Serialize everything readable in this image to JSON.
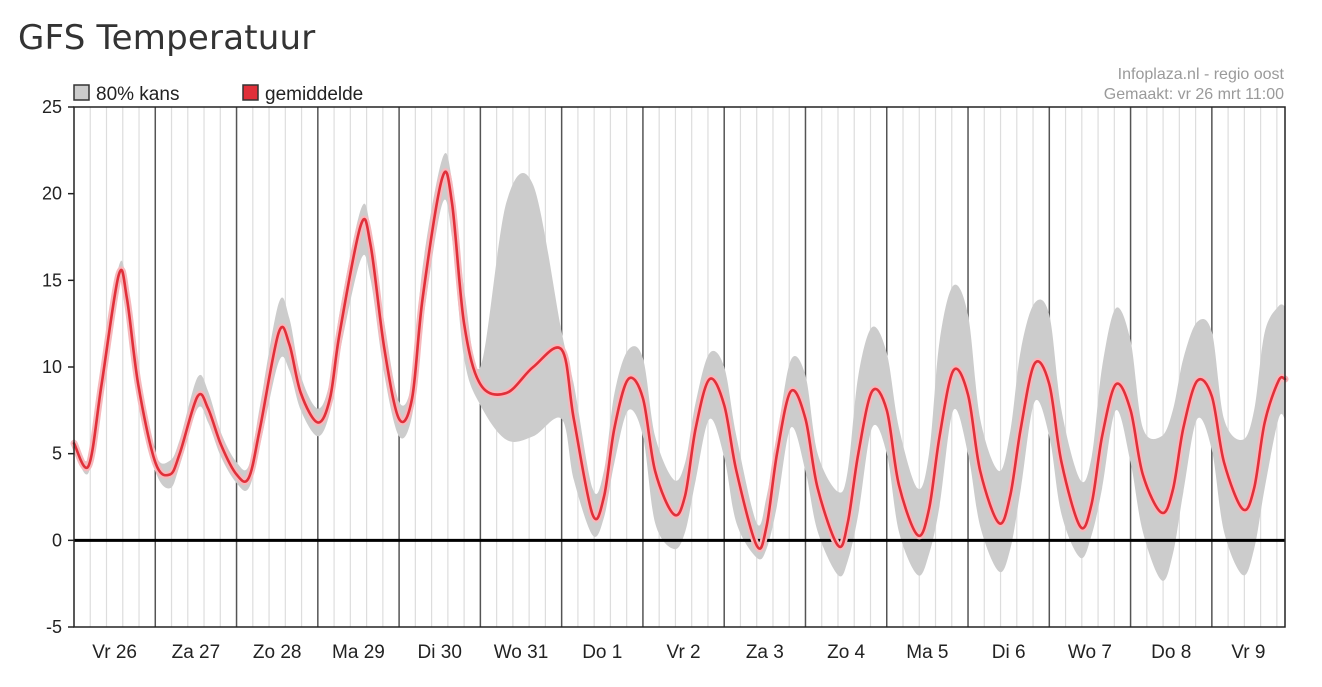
{
  "page": {
    "title": "GFS Temperatuur"
  },
  "chart_data": {
    "type": "area",
    "title": "GFS Temperatuur",
    "xlabel": "",
    "ylabel": "",
    "ylim": [
      -5,
      25
    ],
    "yticks": [
      -5,
      0,
      5,
      10,
      15,
      20,
      25
    ],
    "x_unit": "days since start of Vr 26",
    "xlim": [
      0,
      14.9
    ],
    "day_labels": [
      "Vr 26",
      "Za 27",
      "Zo 28",
      "Ma 29",
      "Di 30",
      "Wo 31",
      "Do 1",
      "Vr 2",
      "Za 3",
      "Zo 4",
      "Ma 5",
      "Di 6",
      "Wo 7",
      "Do 8",
      "Vr 9"
    ],
    "legend": {
      "placement": "top-left",
      "entries": [
        "80% kans",
        "gemiddelde"
      ]
    },
    "source_lines": [
      "Infoplaza.nl - regio oost",
      "Gemaakt: vr 26 mrt 11:00"
    ],
    "colors": {
      "mean": "#e0303a",
      "mean_halo": "#f6b8bc",
      "band": "#cccccc",
      "grid": "#dddddd",
      "day_line": "#555555",
      "zero_line": "#000000"
    },
    "grid": true,
    "series": [
      {
        "name": "gemiddelde",
        "x": [
          0.0,
          0.18,
          0.34,
          0.55,
          0.65,
          0.79,
          1.0,
          1.18,
          1.3,
          1.52,
          1.65,
          1.81,
          2.0,
          2.15,
          2.29,
          2.52,
          2.65,
          2.79,
          3.0,
          3.15,
          3.27,
          3.53,
          3.65,
          3.82,
          4.0,
          4.16,
          4.29,
          4.53,
          4.65,
          4.8,
          5.0,
          5.32,
          5.65,
          6.0,
          6.15,
          6.38,
          6.52,
          6.65,
          6.82,
          7.0,
          7.15,
          7.38,
          7.52,
          7.65,
          7.82,
          8.0,
          8.15,
          8.4,
          8.52,
          8.65,
          8.82,
          9.0,
          9.15,
          9.4,
          9.52,
          9.65,
          9.82,
          10.0,
          10.15,
          10.38,
          10.52,
          10.65,
          10.82,
          11.0,
          11.15,
          11.38,
          11.52,
          11.65,
          11.82,
          12.0,
          12.15,
          12.38,
          12.52,
          12.65,
          12.82,
          13.0,
          13.15,
          13.38,
          13.52,
          13.65,
          13.82,
          14.0,
          14.15,
          14.38,
          14.52,
          14.65,
          14.82,
          14.9
        ],
        "values": [
          5.6,
          4.3,
          9.0,
          15.3,
          14.0,
          9.0,
          4.5,
          3.8,
          5.0,
          8.3,
          7.6,
          5.5,
          3.8,
          3.6,
          6.5,
          12.0,
          11.3,
          8.5,
          6.8,
          8.2,
          12.0,
          18.2,
          17.0,
          11.0,
          7.0,
          8.2,
          14.0,
          20.9,
          19.5,
          12.5,
          9.0,
          8.5,
          10.0,
          11.0,
          7.0,
          1.5,
          2.5,
          6.5,
          9.3,
          8.2,
          4.0,
          1.5,
          2.6,
          6.5,
          9.3,
          7.8,
          4.0,
          -0.3,
          0.8,
          5.0,
          8.6,
          7.0,
          3.0,
          -0.3,
          1.0,
          5.0,
          8.6,
          7.5,
          3.2,
          0.3,
          1.8,
          6.0,
          9.8,
          8.4,
          4.0,
          1.0,
          2.6,
          6.5,
          10.2,
          9.0,
          4.5,
          0.8,
          2.1,
          6.0,
          9.0,
          7.5,
          3.8,
          1.6,
          2.9,
          6.5,
          9.2,
          8.3,
          4.5,
          1.8,
          3.0,
          6.8,
          9.2,
          9.3
        ]
      },
      {
        "name": "80% kans",
        "x": [
          0.0,
          0.18,
          0.34,
          0.55,
          0.65,
          0.79,
          1.0,
          1.18,
          1.3,
          1.52,
          1.65,
          1.81,
          2.0,
          2.15,
          2.29,
          2.52,
          2.65,
          2.79,
          3.0,
          3.15,
          3.27,
          3.53,
          3.65,
          3.82,
          4.0,
          4.16,
          4.29,
          4.53,
          4.65,
          4.8,
          5.0,
          5.32,
          5.65,
          6.0,
          6.15,
          6.38,
          6.52,
          6.65,
          6.82,
          7.0,
          7.15,
          7.38,
          7.52,
          7.65,
          7.82,
          8.0,
          8.15,
          8.4,
          8.52,
          8.65,
          8.82,
          9.0,
          9.15,
          9.4,
          9.52,
          9.65,
          9.82,
          10.0,
          10.15,
          10.38,
          10.52,
          10.65,
          10.82,
          11.0,
          11.15,
          11.38,
          11.52,
          11.65,
          11.82,
          12.0,
          12.15,
          12.38,
          12.52,
          12.65,
          12.82,
          13.0,
          13.15,
          13.38,
          13.52,
          13.65,
          13.82,
          14.0,
          14.15,
          14.38,
          14.52,
          14.65,
          14.82,
          14.9
        ],
        "lower": [
          5.3,
          3.9,
          8.5,
          14.7,
          13.3,
          8.3,
          4.0,
          3.0,
          4.3,
          7.6,
          6.8,
          4.8,
          3.3,
          3.0,
          5.5,
          10.3,
          9.8,
          7.5,
          6.0,
          7.4,
          10.8,
          16.2,
          15.0,
          9.5,
          6.0,
          7.2,
          12.5,
          19.4,
          17.5,
          10.5,
          7.8,
          5.8,
          6.0,
          7.0,
          3.5,
          0.3,
          1.3,
          4.5,
          7.5,
          6.0,
          1.0,
          -0.5,
          0.5,
          3.5,
          7.0,
          4.8,
          1.0,
          -1.0,
          -0.5,
          2.0,
          6.5,
          4.0,
          0.5,
          -2.0,
          -1.2,
          1.5,
          6.5,
          5.0,
          0.5,
          -2.0,
          -0.8,
          2.0,
          7.5,
          5.0,
          0.8,
          -1.8,
          -0.5,
          3.0,
          8.0,
          6.0,
          1.5,
          -1.0,
          0.3,
          3.0,
          7.5,
          4.5,
          0.5,
          -2.3,
          -0.8,
          2.8,
          7.0,
          5.2,
          0.5,
          -2.0,
          -0.5,
          3.0,
          7.0,
          7.0
        ],
        "upper": [
          5.9,
          4.7,
          9.5,
          15.8,
          14.7,
          9.8,
          5.0,
          4.6,
          5.8,
          9.4,
          8.6,
          6.2,
          4.5,
          4.3,
          7.8,
          13.7,
          12.8,
          9.5,
          7.6,
          9.2,
          13.2,
          19.1,
          18.0,
          12.5,
          8.0,
          9.2,
          15.8,
          22.0,
          20.8,
          14.5,
          10.0,
          19.5,
          20.5,
          12.0,
          9.0,
          3.0,
          4.0,
          8.5,
          11.0,
          10.5,
          6.0,
          3.5,
          4.5,
          8.0,
          10.8,
          10.0,
          6.0,
          1.0,
          2.5,
          6.0,
          10.4,
          9.5,
          5.0,
          2.8,
          4.0,
          9.5,
          12.3,
          10.8,
          6.5,
          3.0,
          5.0,
          11.5,
          14.7,
          13.0,
          7.0,
          4.0,
          6.3,
          11.0,
          13.7,
          13.0,
          7.5,
          3.5,
          4.8,
          10.0,
          13.4,
          11.5,
          6.5,
          6.0,
          7.5,
          10.5,
          12.6,
          12.0,
          7.0,
          5.8,
          7.5,
          12.0,
          13.5,
          13.5
        ]
      }
    ]
  }
}
